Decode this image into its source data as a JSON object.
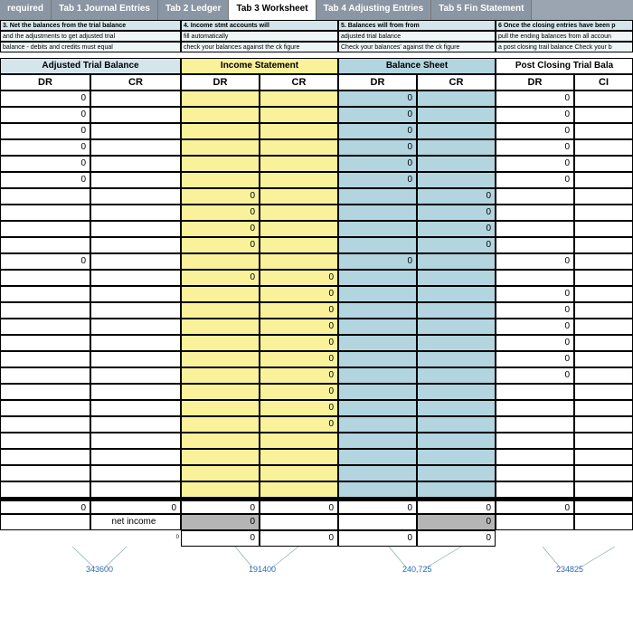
{
  "tabs": {
    "items": [
      {
        "label": "required",
        "active": false
      },
      {
        "label": "Tab 1 Journal Entries",
        "active": false
      },
      {
        "label": "Tab 2 Ledger",
        "active": false
      },
      {
        "label": "Tab 3 Worksheet",
        "active": true
      },
      {
        "label": "Tab 4 Adjusting Entries",
        "active": false
      },
      {
        "label": "Tab 5 Fin Statement",
        "active": false
      }
    ]
  },
  "colors": {
    "atb_bg": "#d4e6ec",
    "is_bg": "#f9f29a",
    "bs_bg": "#b2d5e0",
    "pc_bg": "#ffffff",
    "tab_bg": "#8a96a3",
    "tab_active_bg": "#ffffff",
    "footer_gray": "#b5b5b5"
  },
  "col_widths": {
    "atb_dr": 100,
    "atb_cr": 100,
    "is_dr": 87,
    "is_cr": 87,
    "bs_dr": 87,
    "bs_cr": 87,
    "pc_dr": 87,
    "pc_cr": 65
  },
  "info_boxes": {
    "col1": {
      "h": "3. Net the balances from the trial balance",
      "l1": "and the adjustments to get adjusted trial",
      "l2": "balance - debits and credits must equal"
    },
    "col2": {
      "h": "4. Income stmt accounts will",
      "l1": "fill automatically",
      "l2": "check your balances against the ck figure"
    },
    "col3": {
      "h": "5. Balances will from from",
      "l1": "adjusted trial balance",
      "l2": "Check your balances' against the ck figure"
    },
    "col4": {
      "h": "6 Once the closing entries have been p",
      "l1": "pull the ending balances from all accoun",
      "l2": "a post closing trail balance  Check your b"
    }
  },
  "sections": {
    "atb": "Adjusted Trial Balance",
    "is": "Income Statement",
    "bs": "Balance Sheet",
    "pc": "Post Closing Trial Bala"
  },
  "subheaders": {
    "dr": "DR",
    "cr": "CR",
    "cr_cut": "CI"
  },
  "rows": [
    {
      "atb_dr": "0",
      "is_dr": "",
      "is_cr": "",
      "bs_dr": "0",
      "bs_cr": "",
      "pc_dr": "0"
    },
    {
      "atb_dr": "0",
      "is_dr": "",
      "is_cr": "",
      "bs_dr": "0",
      "bs_cr": "",
      "pc_dr": "0"
    },
    {
      "atb_dr": "0",
      "is_dr": "",
      "is_cr": "",
      "bs_dr": "0",
      "bs_cr": "",
      "pc_dr": "0"
    },
    {
      "atb_dr": "0",
      "is_dr": "",
      "is_cr": "",
      "bs_dr": "0",
      "bs_cr": "",
      "pc_dr": "0"
    },
    {
      "atb_dr": "0",
      "is_dr": "",
      "is_cr": "",
      "bs_dr": "0",
      "bs_cr": "",
      "pc_dr": "0"
    },
    {
      "atb_dr": "0",
      "is_dr": "",
      "is_cr": "",
      "bs_dr": "0",
      "bs_cr": "",
      "pc_dr": "0"
    },
    {
      "atb_dr": "",
      "is_dr": "0",
      "is_cr": "",
      "bs_dr": "",
      "bs_cr": "0",
      "pc_dr": ""
    },
    {
      "atb_dr": "",
      "is_dr": "0",
      "is_cr": "",
      "bs_dr": "",
      "bs_cr": "0",
      "pc_dr": ""
    },
    {
      "atb_dr": "",
      "is_dr": "0",
      "is_cr": "",
      "bs_dr": "",
      "bs_cr": "0",
      "pc_dr": ""
    },
    {
      "atb_dr": "",
      "is_dr": "0",
      "is_cr": "",
      "bs_dr": "",
      "bs_cr": "0",
      "pc_dr": ""
    },
    {
      "atb_dr": "0",
      "is_dr": "",
      "is_cr": "",
      "bs_dr": "0",
      "bs_cr": "",
      "pc_dr": "0"
    },
    {
      "atb_dr": "",
      "is_dr": "0",
      "is_cr": "0",
      "bs_dr": "",
      "bs_cr": "",
      "pc_dr": ""
    },
    {
      "atb_dr": "",
      "is_dr": "",
      "is_cr": "0",
      "bs_dr": "",
      "bs_cr": "",
      "pc_dr": "0"
    },
    {
      "atb_dr": "",
      "is_dr": "",
      "is_cr": "0",
      "bs_dr": "",
      "bs_cr": "",
      "pc_dr": "0"
    },
    {
      "atb_dr": "",
      "is_dr": "",
      "is_cr": "0",
      "bs_dr": "",
      "bs_cr": "",
      "pc_dr": "0"
    },
    {
      "atb_dr": "",
      "is_dr": "",
      "is_cr": "0",
      "bs_dr": "",
      "bs_cr": "",
      "pc_dr": "0"
    },
    {
      "atb_dr": "",
      "is_dr": "",
      "is_cr": "0",
      "bs_dr": "",
      "bs_cr": "",
      "pc_dr": "0"
    },
    {
      "atb_dr": "",
      "is_dr": "",
      "is_cr": "0",
      "bs_dr": "",
      "bs_cr": "",
      "pc_dr": "0"
    },
    {
      "atb_dr": "",
      "is_dr": "",
      "is_cr": "0",
      "bs_dr": "",
      "bs_cr": "",
      "pc_dr": ""
    },
    {
      "atb_dr": "",
      "is_dr": "",
      "is_cr": "0",
      "bs_dr": "",
      "bs_cr": "",
      "pc_dr": ""
    },
    {
      "atb_dr": "",
      "is_dr": "",
      "is_cr": "0",
      "bs_dr": "",
      "bs_cr": "",
      "pc_dr": ""
    },
    {
      "atb_dr": "",
      "is_dr": "",
      "is_cr": "",
      "bs_dr": "",
      "bs_cr": "",
      "pc_dr": ""
    },
    {
      "atb_dr": "",
      "is_dr": "",
      "is_cr": "",
      "bs_dr": "",
      "bs_cr": "",
      "pc_dr": ""
    },
    {
      "atb_dr": "",
      "is_dr": "",
      "is_cr": "",
      "bs_dr": "",
      "bs_cr": "",
      "pc_dr": ""
    },
    {
      "atb_dr": "",
      "is_dr": "",
      "is_cr": "",
      "bs_dr": "",
      "bs_cr": "",
      "pc_dr": ""
    }
  ],
  "totals_row": {
    "atb_dr": "0",
    "atb_cr": "0",
    "is_dr": "0",
    "is_cr": "0",
    "bs_dr": "0",
    "bs_cr": "0",
    "pc_dr": "0"
  },
  "net_income": {
    "label": "net income",
    "is_dr": "0",
    "is_cr": "",
    "bs_dr": "",
    "bs_cr": "0"
  },
  "final_row": {
    "is_dr": "0",
    "is_cr": "0",
    "bs_dr": "0",
    "bs_cr": "0"
  },
  "tiny_zero": "0",
  "bottom_numbers": {
    "n1": "343600",
    "n2": "191400",
    "n3": "240,725",
    "n4": "234825"
  }
}
